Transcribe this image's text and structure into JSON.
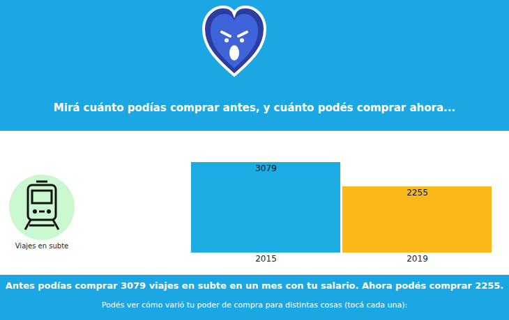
{
  "chart_data": {
    "type": "bar",
    "title": "Mirá cuánto podías comprar antes, y cuánto podés comprar ahora...",
    "annotations": [
      "Viajes en subte",
      "Antes podías comprar 3079 viajes en subte en un mes con tu salario. Ahora podés comprar 2255.",
      "Podés ver cómo varió tu poder de compra para distintas cosas (tocá cada una):"
    ],
    "categories": [
      "2015",
      "2019"
    ],
    "values": [
      3079,
      2255
    ],
    "colors": [
      "#1aace3",
      "#fbb917"
    ],
    "ylim": [
      0,
      3079
    ],
    "data_labels": true,
    "tick_labels": "x"
  }
}
